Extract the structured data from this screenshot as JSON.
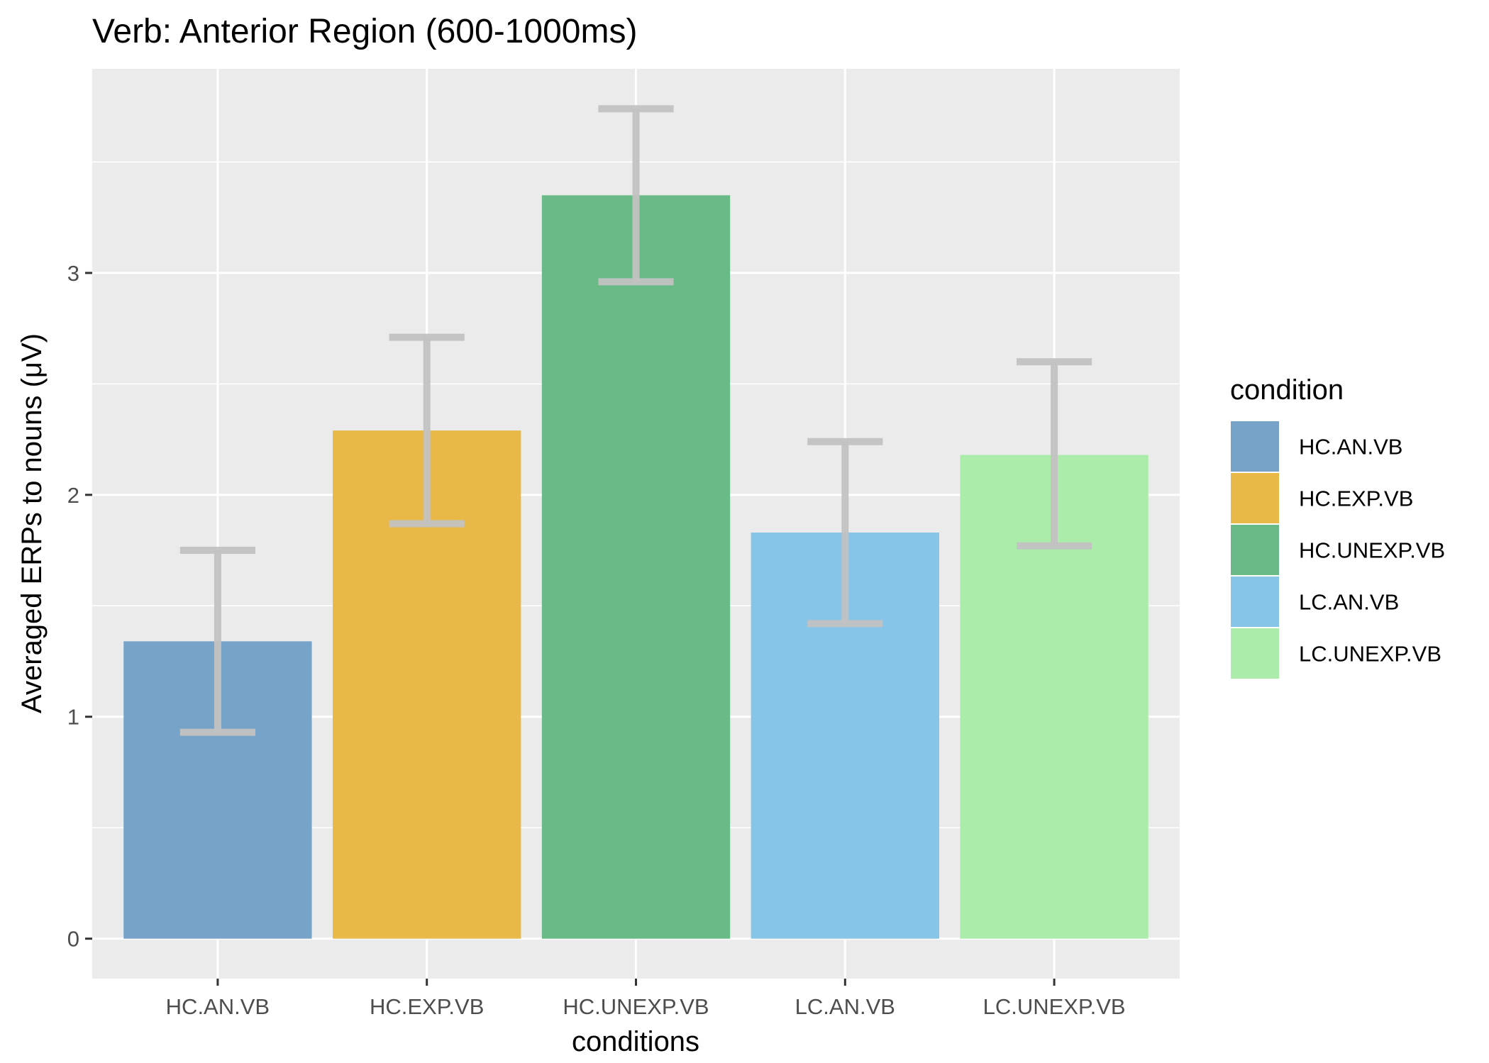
{
  "chart_data": {
    "type": "bar",
    "title": "Verb: Anterior Region (600-1000ms)",
    "xlabel": "conditions",
    "ylabel": "Averaged ERPs to nouns (μV)",
    "categories": [
      "HC.AN.VB",
      "HC.EXP.VB",
      "HC.UNEXP.VB",
      "LC.AN.VB",
      "LC.UNEXP.VB"
    ],
    "values": [
      1.34,
      2.29,
      3.35,
      1.83,
      2.18
    ],
    "error_low": [
      0.93,
      1.87,
      2.96,
      1.42,
      1.77
    ],
    "error_high": [
      1.75,
      2.71,
      3.74,
      2.24,
      2.6
    ],
    "colors": [
      "#78a3c8",
      "#e8b849",
      "#69ba86",
      "#86c4e8",
      "#acecaa"
    ],
    "error_color": "#c2c2c2",
    "ylim": [
      -0.18,
      3.92
    ],
    "y_ticks": [
      0,
      1,
      2,
      3
    ],
    "grid": true,
    "panel_background": "#ebebeb",
    "legend": {
      "title": "condition",
      "position": "right",
      "items": [
        "HC.AN.VB",
        "HC.EXP.VB",
        "HC.UNEXP.VB",
        "LC.AN.VB",
        "LC.UNEXP.VB"
      ]
    }
  }
}
